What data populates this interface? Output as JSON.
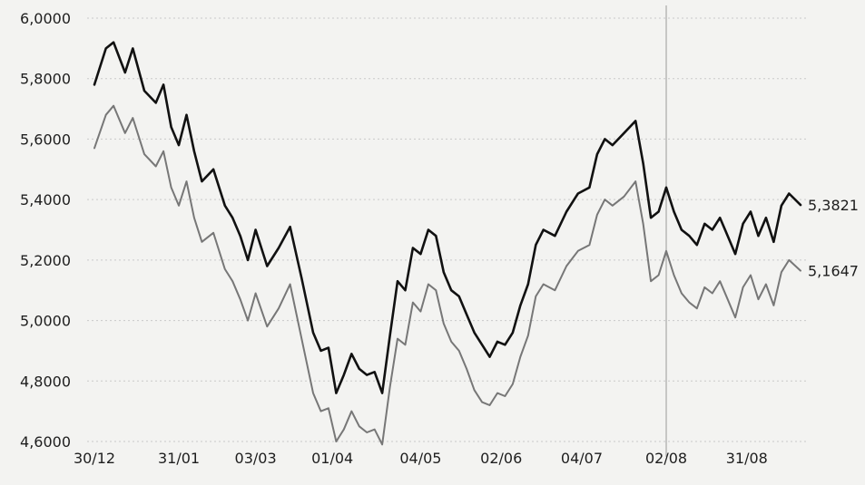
{
  "chart_data": {
    "type": "line",
    "title": "",
    "xlabel": "",
    "ylabel": "",
    "ylim": [
      4.6,
      6.0
    ],
    "yticks": [
      "6,0000",
      "5,8000",
      "5,6000",
      "5,4000",
      "5,2000",
      "5,0000",
      "4,8000",
      "4,6000"
    ],
    "ytick_values": [
      6.0,
      5.8,
      5.6,
      5.4,
      5.2,
      5.0,
      4.8,
      4.6
    ],
    "xticks": [
      "30/12",
      "31/01",
      "03/03",
      "01/04",
      "04/05",
      "02/06",
      "04/07",
      "02/08",
      "31/08"
    ],
    "xtick_index": [
      0,
      22,
      42,
      62,
      85,
      106,
      127,
      149,
      170
    ],
    "x_count": 185,
    "grid": true,
    "highlight_xtick": "02/08",
    "end_labels": [
      "5,3821",
      "5,1647"
    ],
    "colors": {
      "series_high": "#111111",
      "series_low": "#777777",
      "grid": "#c9c9c9"
    },
    "series": [
      {
        "values": [
          [
            0,
            5.78
          ],
          [
            3,
            5.9
          ],
          [
            5,
            5.92
          ],
          [
            8,
            5.82
          ],
          [
            10,
            5.9
          ],
          [
            13,
            5.76
          ],
          [
            16,
            5.72
          ],
          [
            18,
            5.78
          ],
          [
            20,
            5.64
          ],
          [
            22,
            5.58
          ],
          [
            24,
            5.68
          ],
          [
            26,
            5.56
          ],
          [
            28,
            5.46
          ],
          [
            31,
            5.5
          ],
          [
            34,
            5.38
          ],
          [
            36,
            5.34
          ],
          [
            38,
            5.28
          ],
          [
            40,
            5.2
          ],
          [
            42,
            5.3
          ],
          [
            45,
            5.18
          ],
          [
            48,
            5.24
          ],
          [
            51,
            5.31
          ],
          [
            54,
            5.14
          ],
          [
            57,
            4.96
          ],
          [
            59,
            4.9
          ],
          [
            61,
            4.91
          ],
          [
            63,
            4.76
          ],
          [
            65,
            4.82
          ],
          [
            67,
            4.89
          ],
          [
            69,
            4.84
          ],
          [
            71,
            4.82
          ],
          [
            73,
            4.83
          ],
          [
            75,
            4.76
          ],
          [
            77,
            4.95
          ],
          [
            79,
            5.13
          ],
          [
            81,
            5.1
          ],
          [
            83,
            5.24
          ],
          [
            85,
            5.22
          ],
          [
            87,
            5.3
          ],
          [
            89,
            5.28
          ],
          [
            91,
            5.16
          ],
          [
            93,
            5.1
          ],
          [
            95,
            5.08
          ],
          [
            97,
            5.02
          ],
          [
            99,
            4.96
          ],
          [
            101,
            4.92
          ],
          [
            103,
            4.88
          ],
          [
            105,
            4.93
          ],
          [
            107,
            4.92
          ],
          [
            109,
            4.96
          ],
          [
            111,
            5.05
          ],
          [
            113,
            5.12
          ],
          [
            115,
            5.25
          ],
          [
            117,
            5.3
          ],
          [
            120,
            5.28
          ],
          [
            123,
            5.36
          ],
          [
            126,
            5.42
          ],
          [
            129,
            5.44
          ],
          [
            131,
            5.55
          ],
          [
            133,
            5.6
          ],
          [
            135,
            5.58
          ],
          [
            138,
            5.62
          ],
          [
            141,
            5.66
          ],
          [
            143,
            5.52
          ],
          [
            145,
            5.34
          ],
          [
            147,
            5.36
          ],
          [
            149,
            5.44
          ],
          [
            151,
            5.36
          ],
          [
            153,
            5.3
          ],
          [
            155,
            5.28
          ],
          [
            157,
            5.25
          ],
          [
            159,
            5.32
          ],
          [
            161,
            5.3
          ],
          [
            163,
            5.34
          ],
          [
            165,
            5.28
          ],
          [
            167,
            5.22
          ],
          [
            169,
            5.32
          ],
          [
            171,
            5.36
          ],
          [
            173,
            5.28
          ],
          [
            175,
            5.34
          ],
          [
            177,
            5.26
          ],
          [
            179,
            5.38
          ],
          [
            181,
            5.42
          ],
          [
            184,
            5.3821
          ]
        ]
      },
      {
        "values": [
          [
            0,
            5.57
          ],
          [
            3,
            5.68
          ],
          [
            5,
            5.71
          ],
          [
            8,
            5.62
          ],
          [
            10,
            5.67
          ],
          [
            13,
            5.55
          ],
          [
            16,
            5.51
          ],
          [
            18,
            5.56
          ],
          [
            20,
            5.44
          ],
          [
            22,
            5.38
          ],
          [
            24,
            5.46
          ],
          [
            26,
            5.34
          ],
          [
            28,
            5.26
          ],
          [
            31,
            5.29
          ],
          [
            34,
            5.17
          ],
          [
            36,
            5.13
          ],
          [
            38,
            5.07
          ],
          [
            40,
            5.0
          ],
          [
            42,
            5.09
          ],
          [
            45,
            4.98
          ],
          [
            48,
            5.04
          ],
          [
            51,
            5.12
          ],
          [
            54,
            4.94
          ],
          [
            57,
            4.76
          ],
          [
            59,
            4.7
          ],
          [
            61,
            4.71
          ],
          [
            63,
            4.6
          ],
          [
            65,
            4.64
          ],
          [
            67,
            4.7
          ],
          [
            69,
            4.65
          ],
          [
            71,
            4.63
          ],
          [
            73,
            4.64
          ],
          [
            75,
            4.59
          ],
          [
            77,
            4.78
          ],
          [
            79,
            4.94
          ],
          [
            81,
            4.92
          ],
          [
            83,
            5.06
          ],
          [
            85,
            5.03
          ],
          [
            87,
            5.12
          ],
          [
            89,
            5.1
          ],
          [
            91,
            4.99
          ],
          [
            93,
            4.93
          ],
          [
            95,
            4.9
          ],
          [
            97,
            4.84
          ],
          [
            99,
            4.77
          ],
          [
            101,
            4.73
          ],
          [
            103,
            4.72
          ],
          [
            105,
            4.76
          ],
          [
            107,
            4.75
          ],
          [
            109,
            4.79
          ],
          [
            111,
            4.88
          ],
          [
            113,
            4.95
          ],
          [
            115,
            5.08
          ],
          [
            117,
            5.12
          ],
          [
            120,
            5.1
          ],
          [
            123,
            5.18
          ],
          [
            126,
            5.23
          ],
          [
            129,
            5.25
          ],
          [
            131,
            5.35
          ],
          [
            133,
            5.4
          ],
          [
            135,
            5.38
          ],
          [
            138,
            5.41
          ],
          [
            141,
            5.46
          ],
          [
            143,
            5.32
          ],
          [
            145,
            5.13
          ],
          [
            147,
            5.15
          ],
          [
            149,
            5.23
          ],
          [
            151,
            5.15
          ],
          [
            153,
            5.09
          ],
          [
            155,
            5.06
          ],
          [
            157,
            5.04
          ],
          [
            159,
            5.11
          ],
          [
            161,
            5.09
          ],
          [
            163,
            5.13
          ],
          [
            165,
            5.07
          ],
          [
            167,
            5.01
          ],
          [
            169,
            5.11
          ],
          [
            171,
            5.15
          ],
          [
            173,
            5.07
          ],
          [
            175,
            5.12
          ],
          [
            177,
            5.05
          ],
          [
            179,
            5.16
          ],
          [
            181,
            5.2
          ],
          [
            184,
            5.1647
          ]
        ]
      }
    ]
  }
}
